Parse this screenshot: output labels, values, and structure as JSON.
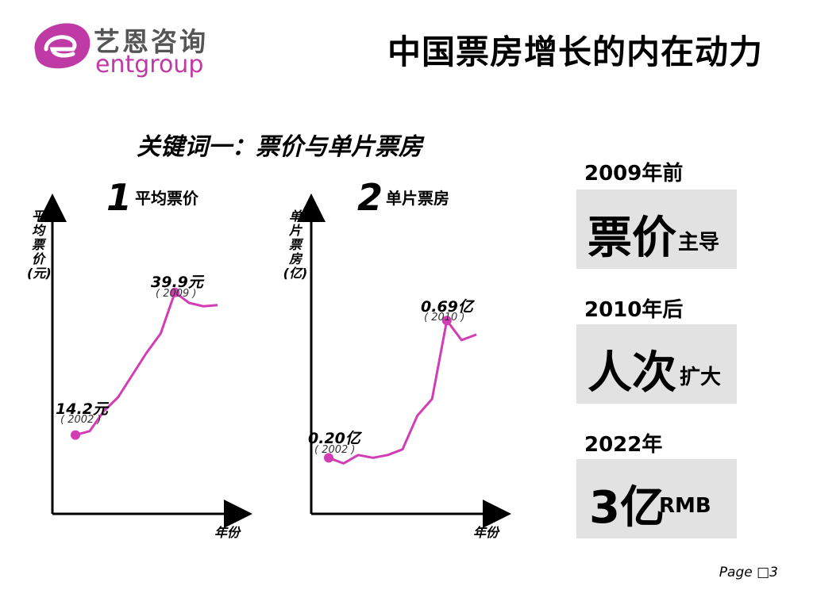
{
  "header": {
    "logo_cn": "艺恩咨询",
    "logo_en": "entgroup",
    "title": "中国票房增长的内在动力"
  },
  "keyword": "关键词一：票价与单片票房",
  "charts": {
    "c1": {
      "num": "1",
      "label": "平均票价",
      "ylabel": [
        "平",
        "均",
        "票",
        "价",
        "(元)"
      ],
      "xlabel": "年份",
      "annot_start_value": "14.2元",
      "annot_start_year": "( 2002 )",
      "annot_peak_value": "39.9元",
      "annot_peak_year": "( 2009 )"
    },
    "c2": {
      "num": "2",
      "label": "单片票房",
      "ylabel": [
        "单",
        "片",
        "票",
        "房",
        "(亿)"
      ],
      "xlabel": "年份",
      "annot_start_value": "0.20亿",
      "annot_start_year": "( 2002 )",
      "annot_peak_value": "0.69亿",
      "annot_peak_year": "( 2010 )"
    }
  },
  "right_panel": {
    "s1_head": "2009年前",
    "s1_big": "票价",
    "s1_small": "主导",
    "s2_head": "2010年后",
    "s2_big": "人次",
    "s2_small": "扩大",
    "s3_head": "2022年",
    "s3_big": "3亿",
    "s3_small": "RMB"
  },
  "page": "Page □3",
  "colors": {
    "line": "#d23cb4",
    "logo": "#c03aa6",
    "box": "#e2e2e2"
  },
  "chart_data": [
    {
      "type": "line",
      "ylabel": "平均票价(元)",
      "xlabel": "年份",
      "x": [
        2002,
        2003,
        2004,
        2005,
        2006,
        2007,
        2008,
        2009,
        2010,
        2011,
        2012
      ],
      "series": [
        {
          "values": [
            14.2,
            14.9,
            18.5,
            21.0,
            25.0,
            29.0,
            32.5,
            39.9,
            38.0,
            37.4,
            37.6
          ]
        }
      ],
      "annotations": [
        {
          "x": 2002,
          "y": 14.2,
          "label": "14.2元 ( 2002 )"
        },
        {
          "x": 2009,
          "y": 39.9,
          "label": "39.9元 ( 2009 )"
        }
      ]
    },
    {
      "type": "line",
      "ylabel": "单片票房(亿)",
      "xlabel": "年份",
      "x": [
        2002,
        2003,
        2004,
        2005,
        2006,
        2007,
        2008,
        2009,
        2010,
        2011,
        2012
      ],
      "series": [
        {
          "values": [
            0.2,
            0.18,
            0.21,
            0.2,
            0.21,
            0.23,
            0.35,
            0.41,
            0.69,
            0.62,
            0.64
          ]
        }
      ],
      "annotations": [
        {
          "x": 2002,
          "y": 0.2,
          "label": "0.20亿 ( 2002 )"
        },
        {
          "x": 2010,
          "y": 0.69,
          "label": "0.69亿 ( 2010 )"
        }
      ]
    }
  ]
}
